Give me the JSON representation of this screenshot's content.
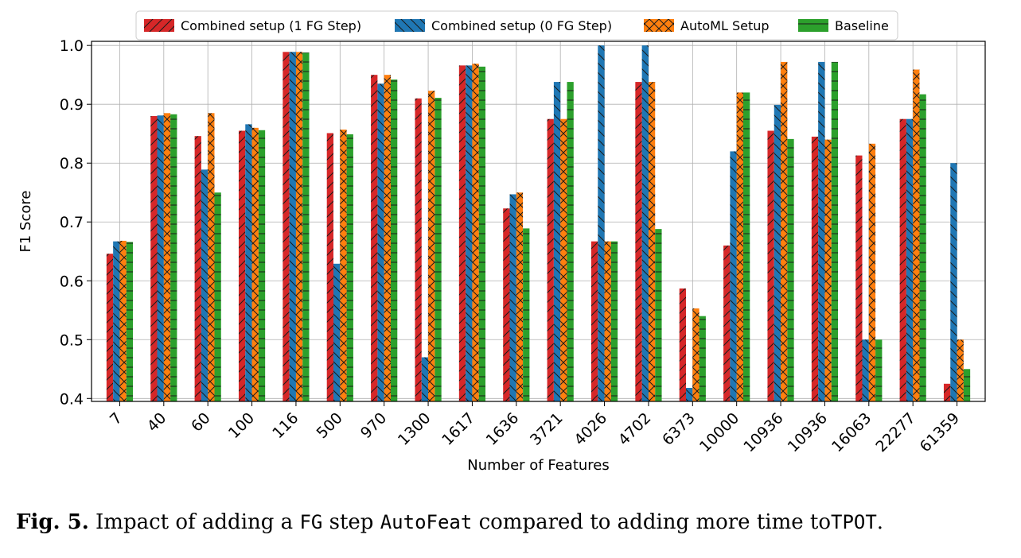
{
  "chart_data": {
    "type": "bar",
    "xlabel": "Number of Features",
    "ylabel": "F1 Score",
    "ylim": [
      0.395,
      1.007
    ],
    "yticks": [
      "0.4",
      "0.5",
      "0.6",
      "0.7",
      "0.8",
      "0.9",
      "1.0"
    ],
    "grid": true,
    "legend_position": "top-center",
    "categories": [
      "7",
      "40",
      "60",
      "100",
      "116",
      "500",
      "970",
      "1300",
      "1617",
      "1636",
      "3721",
      "4026",
      "4702",
      "6373",
      "10000",
      "10936",
      "10936",
      "16063",
      "22277",
      "61359"
    ],
    "series": [
      {
        "name": "Combined setup (1 FG Step)",
        "color": "#d62728",
        "hatch": "diagonal",
        "values": [
          0.646,
          0.88,
          0.846,
          0.855,
          0.989,
          0.851,
          0.95,
          0.91,
          0.966,
          0.723,
          0.875,
          0.667,
          0.938,
          0.587,
          0.66,
          0.855,
          0.845,
          0.813,
          0.875,
          0.425
        ]
      },
      {
        "name": "Combined setup (0 FG Step)",
        "color": "#1f77b4",
        "hatch": "backslash",
        "values": [
          0.667,
          0.881,
          0.789,
          0.866,
          0.989,
          0.629,
          0.935,
          0.47,
          0.966,
          0.747,
          0.938,
          1.0,
          1.0,
          0.418,
          0.82,
          0.899,
          0.972,
          0.5,
          0.875,
          0.8
        ]
      },
      {
        "name": "AutoML Setup",
        "color": "#ff7f0e",
        "hatch": "cross",
        "values": [
          0.668,
          0.885,
          0.885,
          0.86,
          0.989,
          0.857,
          0.95,
          0.923,
          0.969,
          0.75,
          0.875,
          0.667,
          0.938,
          0.553,
          0.92,
          0.972,
          0.84,
          0.833,
          0.959,
          0.5
        ]
      },
      {
        "name": "Baseline",
        "color": "#2ca02c",
        "hatch": "horizontal",
        "values": [
          0.666,
          0.883,
          0.75,
          0.856,
          0.988,
          0.849,
          0.942,
          0.911,
          0.964,
          0.689,
          0.938,
          0.667,
          0.688,
          0.54,
          0.92,
          0.841,
          0.972,
          0.5,
          0.917,
          0.45
        ]
      }
    ]
  },
  "caption": {
    "label": "Fig. 5.",
    "text_1": "Impact of adding a",
    "code_1": "FG",
    "text_2": "step",
    "code_2": "AutoFeat",
    "text_3": "compared to adding more time to",
    "code_3": "TPOT",
    "text_4": "."
  }
}
